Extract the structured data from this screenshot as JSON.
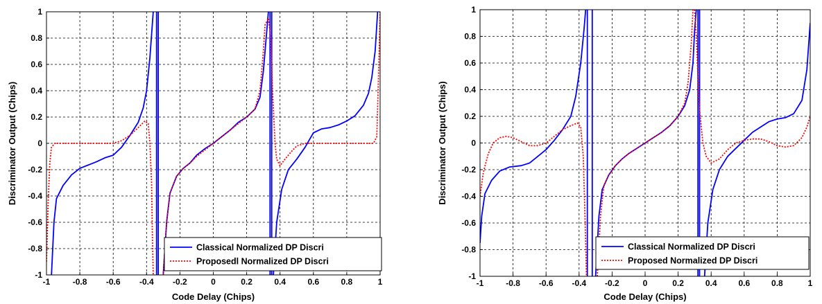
{
  "chart_data": [
    {
      "type": "line",
      "xlabel": "Code Delay (Chips)",
      "ylabel": "Discriminator Output (Chips)",
      "xlim": [
        -1,
        1
      ],
      "ylim": [
        -1,
        1
      ],
      "xticks": [
        "-1",
        "-0.8",
        "-0.6",
        "-0.4",
        "-0.2",
        "0",
        "0.2",
        "0.4",
        "0.6",
        "0.8",
        "1"
      ],
      "yticks": [
        "-1",
        "-0.8",
        "-0.6",
        "-0.4",
        "-0.2",
        "0",
        "0.2",
        "0.4",
        "0.6",
        "0.8",
        "1"
      ],
      "grid": true,
      "legend_position": "bottom-right",
      "series": [
        {
          "name": "Classical Normalized DP Discri",
          "color": "#0000ff",
          "style": "solid",
          "segments": [
            [
              [
                -0.97,
                -1.0
              ],
              [
                -0.955,
                -0.6
              ],
              [
                -0.94,
                -0.42
              ],
              [
                -0.9,
                -0.32
              ],
              [
                -0.85,
                -0.24
              ],
              [
                -0.8,
                -0.19
              ],
              [
                -0.7,
                -0.14
              ],
              [
                -0.65,
                -0.11
              ],
              [
                -0.6,
                -0.09
              ],
              [
                -0.55,
                -0.03
              ],
              [
                -0.5,
                0.06
              ],
              [
                -0.45,
                0.16
              ],
              [
                -0.42,
                0.27
              ],
              [
                -0.4,
                0.4
              ],
              [
                -0.38,
                0.65
              ],
              [
                -0.36,
                1.0
              ]
            ],
            [
              [
                -0.34,
                1.0
              ],
              [
                -0.34,
                -1.0
              ]
            ],
            [
              [
                -0.33,
                -1.0
              ],
              [
                -0.33,
                1.0
              ]
            ],
            [
              [
                -0.3,
                -1.0
              ],
              [
                -0.28,
                -0.6
              ],
              [
                -0.26,
                -0.38
              ],
              [
                -0.22,
                -0.25
              ],
              [
                -0.18,
                -0.19
              ],
              [
                -0.14,
                -0.15
              ],
              [
                -0.1,
                -0.09
              ],
              [
                -0.05,
                -0.04
              ],
              [
                0.0,
                0.0
              ],
              [
                0.05,
                0.05
              ],
              [
                0.1,
                0.1
              ],
              [
                0.15,
                0.16
              ],
              [
                0.2,
                0.2
              ],
              [
                0.25,
                0.26
              ],
              [
                0.28,
                0.35
              ],
              [
                0.3,
                0.55
              ],
              [
                0.32,
                0.85
              ],
              [
                0.33,
                1.0
              ]
            ],
            [
              [
                0.34,
                1.0
              ],
              [
                0.34,
                -1.0
              ]
            ],
            [
              [
                0.35,
                -1.0
              ],
              [
                0.35,
                1.0
              ]
            ],
            [
              [
                0.36,
                -1.0
              ],
              [
                0.38,
                -0.6
              ],
              [
                0.41,
                -0.35
              ],
              [
                0.45,
                -0.2
              ],
              [
                0.5,
                -0.12
              ],
              [
                0.55,
                -0.03
              ],
              [
                0.6,
                0.08
              ],
              [
                0.65,
                0.11
              ],
              [
                0.7,
                0.12
              ],
              [
                0.75,
                0.14
              ],
              [
                0.8,
                0.17
              ],
              [
                0.85,
                0.21
              ],
              [
                0.9,
                0.29
              ],
              [
                0.93,
                0.38
              ],
              [
                0.95,
                0.5
              ],
              [
                0.97,
                0.7
              ],
              [
                0.985,
                1.0
              ]
            ]
          ]
        },
        {
          "name": "Proposedl Normalized DP Discri",
          "color": "#ff0000",
          "style": "dotted",
          "segments": [
            [
              [
                -1.0,
                -0.9
              ],
              [
                -0.99,
                -0.45
              ],
              [
                -0.98,
                -0.15
              ],
              [
                -0.97,
                -0.03
              ],
              [
                -0.95,
                0.0
              ],
              [
                -0.8,
                0.0
              ],
              [
                -0.6,
                0.0
              ],
              [
                -0.55,
                0.02
              ],
              [
                -0.5,
                0.06
              ],
              [
                -0.45,
                0.12
              ],
              [
                -0.41,
                0.17
              ],
              [
                -0.39,
                0.15
              ],
              [
                -0.38,
                0.0
              ],
              [
                -0.37,
                -0.3
              ],
              [
                -0.365,
                -0.7
              ],
              [
                -0.36,
                -1.0
              ]
            ],
            [
              [
                -0.3,
                -1.0
              ],
              [
                -0.28,
                -0.6
              ],
              [
                -0.26,
                -0.38
              ],
              [
                -0.22,
                -0.25
              ],
              [
                -0.18,
                -0.19
              ],
              [
                -0.14,
                -0.15
              ],
              [
                -0.1,
                -0.1
              ],
              [
                -0.05,
                -0.05
              ],
              [
                0.0,
                0.0
              ],
              [
                0.05,
                0.05
              ],
              [
                0.1,
                0.1
              ],
              [
                0.15,
                0.15
              ],
              [
                0.2,
                0.2
              ],
              [
                0.25,
                0.26
              ],
              [
                0.28,
                0.4
              ],
              [
                0.3,
                0.7
              ],
              [
                0.31,
                0.9
              ],
              [
                0.33,
                0.95
              ],
              [
                0.345,
                0.8
              ],
              [
                0.355,
                0.4
              ],
              [
                0.37,
                0.0
              ],
              [
                0.38,
                -0.12
              ],
              [
                0.4,
                -0.17
              ],
              [
                0.43,
                -0.12
              ],
              [
                0.47,
                -0.06
              ],
              [
                0.5,
                -0.02
              ],
              [
                0.55,
                0.0
              ],
              [
                0.7,
                0.0
              ],
              [
                0.9,
                0.0
              ],
              [
                0.96,
                0.0
              ],
              [
                0.98,
                0.05
              ],
              [
                0.99,
                0.5
              ],
              [
                1.0,
                1.0
              ]
            ]
          ]
        }
      ],
      "legend": [
        "Classical Normalized DP Discri",
        "Proposedl Normalized DP Discri"
      ]
    },
    {
      "type": "line",
      "xlabel": "Code Delay (Chips)",
      "ylabel": "Discriminator Output (Chips)",
      "xlim": [
        -1,
        1
      ],
      "ylim": [
        -1,
        1
      ],
      "xticks": [
        "-1",
        "-0.8",
        "-0.6",
        "-0.4",
        "-0.2",
        "0",
        "0.2",
        "0.4",
        "0.6",
        "0.8",
        "1"
      ],
      "yticks": [
        "-1",
        "-0.8",
        "-0.6",
        "-0.4",
        "-0.2",
        "0",
        "0.2",
        "0.4",
        "0.6",
        "0.8",
        "1"
      ],
      "grid": true,
      "legend_position": "bottom-right",
      "series": [
        {
          "name": "Classical Normalized DP Discri",
          "color": "#0000ff",
          "style": "solid",
          "segments": [
            [
              [
                -1.0,
                -0.75
              ],
              [
                -0.99,
                -0.55
              ],
              [
                -0.97,
                -0.38
              ],
              [
                -0.93,
                -0.28
              ],
              [
                -0.88,
                -0.21
              ],
              [
                -0.82,
                -0.18
              ],
              [
                -0.75,
                -0.17
              ],
              [
                -0.7,
                -0.15
              ],
              [
                -0.65,
                -0.1
              ],
              [
                -0.6,
                -0.05
              ],
              [
                -0.55,
                0.02
              ],
              [
                -0.5,
                0.1
              ],
              [
                -0.45,
                0.2
              ],
              [
                -0.42,
                0.35
              ],
              [
                -0.39,
                0.6
              ],
              [
                -0.37,
                0.85
              ],
              [
                -0.36,
                1.0
              ]
            ],
            [
              [
                -0.35,
                1.0
              ],
              [
                -0.35,
                -1.0
              ]
            ],
            [
              [
                -0.32,
                -1.0
              ],
              [
                -0.32,
                1.0
              ]
            ],
            [
              [
                -0.3,
                -1.0
              ],
              [
                -0.28,
                -0.55
              ],
              [
                -0.26,
                -0.35
              ],
              [
                -0.22,
                -0.24
              ],
              [
                -0.18,
                -0.17
              ],
              [
                -0.14,
                -0.12
              ],
              [
                -0.1,
                -0.08
              ],
              [
                -0.05,
                -0.04
              ],
              [
                0.0,
                0.0
              ],
              [
                0.05,
                0.04
              ],
              [
                0.1,
                0.08
              ],
              [
                0.15,
                0.13
              ],
              [
                0.2,
                0.2
              ],
              [
                0.24,
                0.28
              ],
              [
                0.27,
                0.4
              ],
              [
                0.29,
                0.6
              ],
              [
                0.3,
                0.85
              ],
              [
                0.31,
                1.0
              ]
            ],
            [
              [
                0.32,
                1.0
              ],
              [
                0.32,
                -1.0
              ]
            ],
            [
              [
                0.33,
                -1.0
              ],
              [
                0.33,
                1.0
              ]
            ],
            [
              [
                0.36,
                -1.0
              ],
              [
                0.38,
                -0.6
              ],
              [
                0.41,
                -0.35
              ],
              [
                0.45,
                -0.2
              ],
              [
                0.5,
                -0.1
              ],
              [
                0.55,
                -0.04
              ],
              [
                0.6,
                0.02
              ],
              [
                0.65,
                0.08
              ],
              [
                0.7,
                0.12
              ],
              [
                0.75,
                0.16
              ],
              [
                0.8,
                0.18
              ],
              [
                0.85,
                0.19
              ],
              [
                0.9,
                0.22
              ],
              [
                0.95,
                0.32
              ],
              [
                0.98,
                0.55
              ],
              [
                1.0,
                0.9
              ]
            ]
          ]
        },
        {
          "name": "Proposed Normalized DP Discri",
          "color": "#ff0000",
          "style": "dotted",
          "segments": [
            [
              [
                -1.0,
                -0.4
              ],
              [
                -0.98,
                -0.22
              ],
              [
                -0.95,
                -0.08
              ],
              [
                -0.92,
                0.0
              ],
              [
                -0.88,
                0.04
              ],
              [
                -0.84,
                0.05
              ],
              [
                -0.8,
                0.04
              ],
              [
                -0.75,
                0.01
              ],
              [
                -0.7,
                -0.02
              ],
              [
                -0.65,
                -0.02
              ],
              [
                -0.6,
                0.0
              ],
              [
                -0.55,
                0.05
              ],
              [
                -0.5,
                0.1
              ],
              [
                -0.45,
                0.13
              ],
              [
                -0.41,
                0.15
              ],
              [
                -0.39,
                0.12
              ],
              [
                -0.375,
                -0.1
              ],
              [
                -0.365,
                -0.5
              ],
              [
                -0.355,
                -1.0
              ]
            ],
            [
              [
                -0.29,
                -1.0
              ],
              [
                -0.27,
                -0.55
              ],
              [
                -0.25,
                -0.32
              ],
              [
                -0.22,
                -0.24
              ],
              [
                -0.18,
                -0.17
              ],
              [
                -0.14,
                -0.12
              ],
              [
                -0.1,
                -0.08
              ],
              [
                -0.05,
                -0.04
              ],
              [
                0.0,
                0.0
              ],
              [
                0.05,
                0.04
              ],
              [
                0.1,
                0.08
              ],
              [
                0.15,
                0.13
              ],
              [
                0.2,
                0.2
              ],
              [
                0.24,
                0.3
              ],
              [
                0.26,
                0.45
              ],
              [
                0.28,
                0.75
              ],
              [
                0.29,
                1.0
              ]
            ],
            [
              [
                0.3,
                1.0
              ],
              [
                0.31,
                0.8
              ],
              [
                0.32,
                0.5
              ],
              [
                0.33,
                0.25
              ],
              [
                0.35,
                0.0
              ],
              [
                0.37,
                -0.1
              ],
              [
                0.4,
                -0.15
              ],
              [
                0.45,
                -0.12
              ],
              [
                0.5,
                -0.05
              ],
              [
                0.55,
                0.0
              ],
              [
                0.6,
                0.02
              ],
              [
                0.65,
                0.03
              ],
              [
                0.7,
                0.03
              ],
              [
                0.75,
                0.01
              ],
              [
                0.8,
                -0.02
              ],
              [
                0.85,
                -0.03
              ],
              [
                0.9,
                -0.02
              ],
              [
                0.95,
                0.04
              ],
              [
                0.98,
                0.12
              ],
              [
                1.0,
                0.2
              ]
            ]
          ]
        }
      ],
      "legend": [
        "Classical Normalized DP Discri",
        "Proposed Normalized DP Discri"
      ]
    }
  ]
}
